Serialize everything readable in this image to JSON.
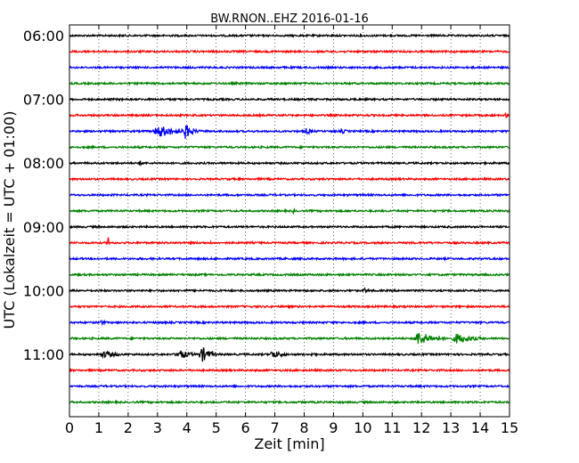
{
  "chart_data": {
    "type": "line",
    "title": "BW.RNON..EHZ 2016-01-16",
    "xlabel": "Zeit  [min]",
    "ylabel": "UTC (Lokalzeit = UTC + 01:00)",
    "x_ticks": [
      "0",
      "1",
      "2",
      "3",
      "4",
      "5",
      "6",
      "7",
      "8",
      "9",
      "10",
      "11",
      "12",
      "13",
      "14",
      "15"
    ],
    "xlim": [
      0,
      15
    ],
    "y_ticks": [
      "06:00",
      "07:00",
      "08:00",
      "09:00",
      "10:00",
      "11:00"
    ],
    "grid": "vertical dotted at each minute",
    "colors": [
      "#000000",
      "#ff0000",
      "#0000ff",
      "#008000"
    ],
    "traces": [
      {
        "start": "06:00",
        "color": "#000000",
        "events": []
      },
      {
        "start": "06:15",
        "color": "#ff0000",
        "events": []
      },
      {
        "start": "06:30",
        "color": "#0000ff",
        "events": []
      },
      {
        "start": "06:45",
        "color": "#008000",
        "events": []
      },
      {
        "start": "07:00",
        "color": "#000000",
        "events": []
      },
      {
        "start": "07:15",
        "color": "#ff0000",
        "events": [
          {
            "t": 14.85,
            "amp": 4,
            "dur": 0.15
          }
        ]
      },
      {
        "start": "07:30",
        "color": "#0000ff",
        "events": [
          {
            "t": 2.8,
            "amp": 7,
            "dur": 1.5
          },
          {
            "t": 3.85,
            "amp": 9,
            "dur": 0.6
          },
          {
            "t": 8.0,
            "amp": 4,
            "dur": 0.5
          },
          {
            "t": 9.2,
            "amp": 3,
            "dur": 0.5
          }
        ]
      },
      {
        "start": "07:45",
        "color": "#008000",
        "events": []
      },
      {
        "start": "08:00",
        "color": "#000000",
        "events": [
          {
            "t": 2.3,
            "amp": 3,
            "dur": 0.4
          }
        ]
      },
      {
        "start": "08:15",
        "color": "#ff0000",
        "events": []
      },
      {
        "start": "08:30",
        "color": "#0000ff",
        "events": []
      },
      {
        "start": "08:45",
        "color": "#008000",
        "events": [
          {
            "t": 7.6,
            "amp": 3,
            "dur": 0.2
          }
        ]
      },
      {
        "start": "09:00",
        "color": "#000000",
        "events": []
      },
      {
        "start": "09:15",
        "color": "#ff0000",
        "events": [
          {
            "t": 1.3,
            "amp": 11,
            "dur": 0.08
          },
          {
            "t": 4.8,
            "amp": 3,
            "dur": 0.1
          }
        ]
      },
      {
        "start": "09:30",
        "color": "#0000ff",
        "events": [
          {
            "t": 7.3,
            "amp": 2,
            "dur": 0.3
          }
        ]
      },
      {
        "start": "09:45",
        "color": "#008000",
        "events": []
      },
      {
        "start": "10:00",
        "color": "#000000",
        "events": [
          {
            "t": 10.0,
            "amp": 3,
            "dur": 0.4
          }
        ]
      },
      {
        "start": "10:15",
        "color": "#ff0000",
        "events": []
      },
      {
        "start": "10:30",
        "color": "#0000ff",
        "events": [
          {
            "t": 1.0,
            "amp": 3,
            "dur": 0.4
          }
        ]
      },
      {
        "start": "10:45",
        "color": "#008000",
        "events": [
          {
            "t": 11.7,
            "amp": 8,
            "dur": 1.2
          },
          {
            "t": 13.0,
            "amp": 6,
            "dur": 1.3
          }
        ]
      },
      {
        "start": "11:00",
        "color": "#000000",
        "events": [
          {
            "t": 1.0,
            "amp": 4,
            "dur": 1.2
          },
          {
            "t": 3.6,
            "amp": 6,
            "dur": 0.8
          },
          {
            "t": 4.4,
            "amp": 10,
            "dur": 0.6
          },
          {
            "t": 6.8,
            "amp": 5,
            "dur": 0.8
          },
          {
            "t": 8.2,
            "amp": 3,
            "dur": 0.4
          }
        ]
      },
      {
        "start": "11:15",
        "color": "#ff0000",
        "events": []
      },
      {
        "start": "11:30",
        "color": "#0000ff",
        "events": []
      },
      {
        "start": "11:45",
        "color": "#008000",
        "events": []
      }
    ]
  }
}
